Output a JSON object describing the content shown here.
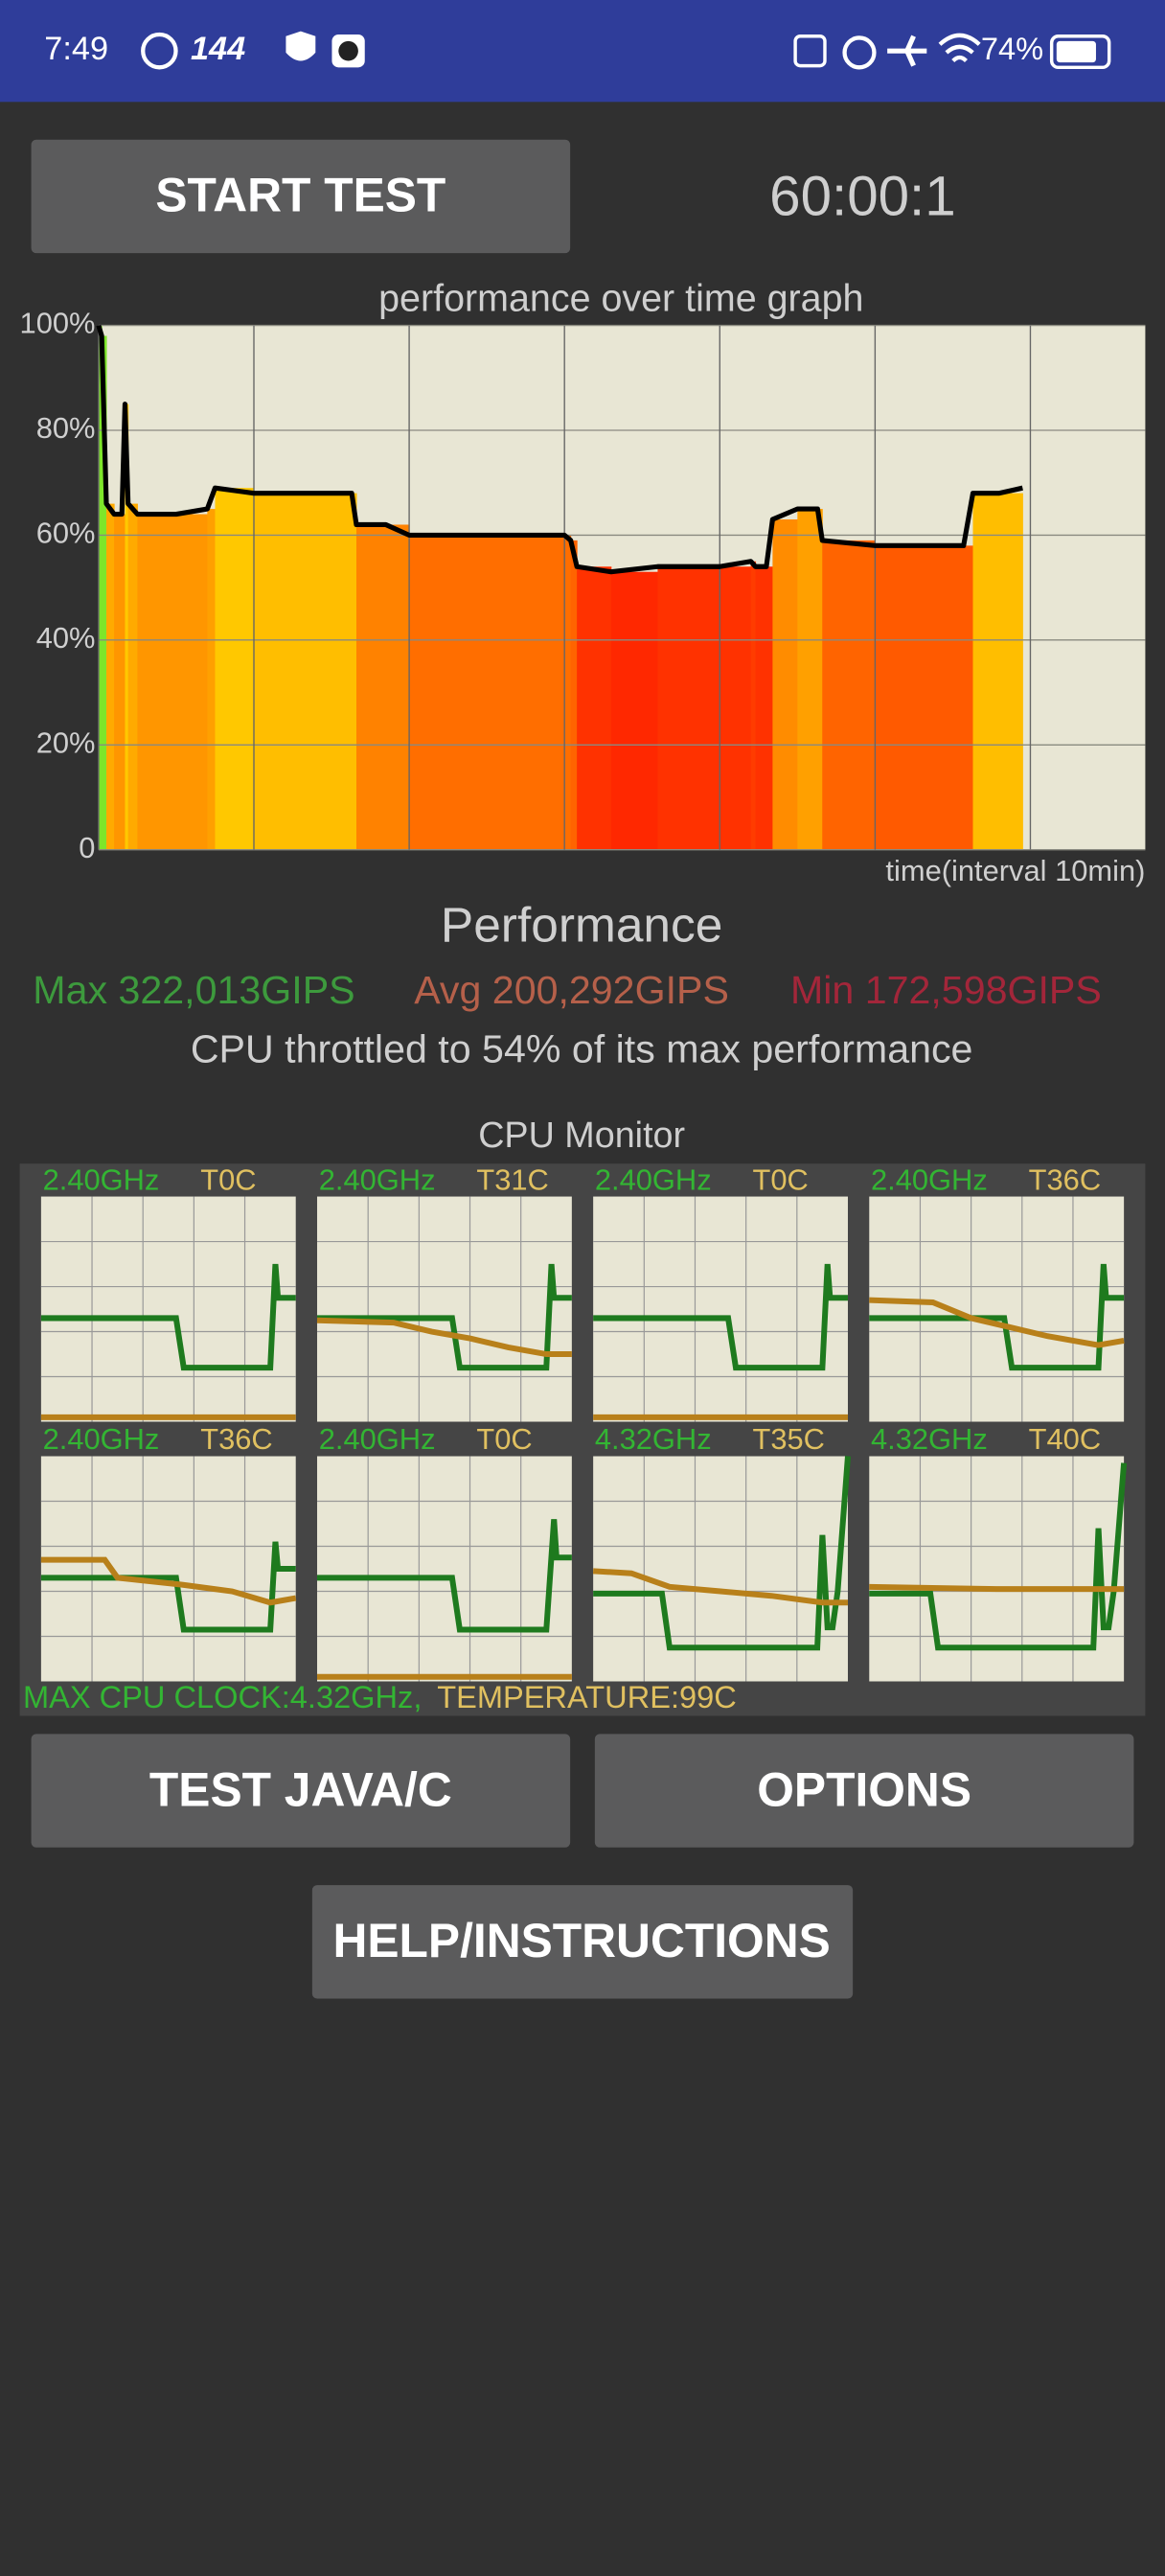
{
  "status_bar": {
    "time": "7:49",
    "refresh": "144",
    "battery": "74%"
  },
  "start_button": "START TEST",
  "timer": "60:00:1",
  "chart_data": {
    "type": "line",
    "title": "performance over time graph",
    "x_label": "time(interval 10min)",
    "xlim": [
      0,
      67.4
    ],
    "xticks": [
      0,
      10,
      20,
      30,
      40,
      50,
      60
    ],
    "ylim": [
      0,
      100
    ],
    "yticks": [
      0,
      {
        "value": 20,
        "label": "20%"
      },
      {
        "value": 40,
        "label": "40%"
      },
      {
        "value": 60,
        "label": "60%"
      },
      {
        "value": 80,
        "label": "80%"
      },
      {
        "value": 100,
        "label": "100%"
      }
    ],
    "grid": true,
    "series": [
      {
        "color": "#000000",
        "x": [
          0,
          0.2,
          0.5,
          1,
          1.5,
          1.7,
          1.9,
          2.5,
          5,
          7,
          7.5,
          10,
          14,
          16.3,
          16.6,
          18.5,
          20,
          25,
          30,
          30.4,
          30.8,
          33,
          36,
          40,
          42,
          42.3,
          43,
          43.4,
          45,
          46.3,
          46.6,
          50,
          55,
          55.7,
          56.3,
          58,
          59.5
        ],
        "values": [
          100,
          98,
          66,
          64,
          64,
          85,
          66,
          64,
          64,
          65,
          69,
          68,
          68,
          68,
          62,
          62,
          60,
          60,
          60,
          59,
          54,
          53,
          54,
          54,
          55,
          54,
          54,
          63,
          65,
          65,
          59,
          58,
          58,
          58,
          68,
          68,
          69
        ]
      }
    ]
  },
  "performance": {
    "title": "Performance",
    "max": "Max 322,013GIPS",
    "avg": "Avg 200,292GIPS",
    "min": "Min 172,598GIPS",
    "throttle": "CPU throttled to 54% of its max performance"
  },
  "cpu_monitor": {
    "title": "CPU Monitor",
    "freq_color": "#1e7a1e",
    "temp_color": "#b8801a",
    "ylim": [
      0,
      100
    ],
    "xlim": [
      0,
      100
    ],
    "cells": [
      {
        "freq_label": "2.40GHz",
        "temp_label": "T0C",
        "freq": {
          "x": [
            0,
            53,
            56,
            90,
            92,
            93,
            100
          ],
          "values": [
            46,
            46,
            24,
            24,
            70,
            55,
            55
          ]
        },
        "temp": {
          "x": [
            0,
            100
          ],
          "values": [
            2,
            2
          ]
        }
      },
      {
        "freq_label": "2.40GHz",
        "temp_label": "T31C",
        "freq": {
          "x": [
            0,
            53,
            56,
            90,
            92,
            93,
            100
          ],
          "values": [
            46,
            46,
            24,
            24,
            70,
            55,
            55
          ]
        },
        "temp": {
          "x": [
            0,
            30,
            45,
            60,
            75,
            90,
            100
          ],
          "values": [
            45,
            44,
            40,
            37,
            33,
            30,
            30
          ]
        }
      },
      {
        "freq_label": "2.40GHz",
        "temp_label": "T0C",
        "freq": {
          "x": [
            0,
            53,
            56,
            90,
            92,
            93,
            100
          ],
          "values": [
            46,
            46,
            24,
            24,
            70,
            55,
            55
          ]
        },
        "temp": {
          "x": [
            0,
            100
          ],
          "values": [
            2,
            2
          ]
        }
      },
      {
        "freq_label": "2.40GHz",
        "temp_label": "T36C",
        "freq": {
          "x": [
            0,
            53,
            56,
            90,
            92,
            93,
            100
          ],
          "values": [
            46,
            46,
            24,
            24,
            70,
            55,
            55
          ]
        },
        "temp": {
          "x": [
            0,
            25,
            40,
            55,
            70,
            90,
            100
          ],
          "values": [
            54,
            53,
            46,
            42,
            38,
            34,
            36
          ]
        }
      },
      {
        "freq_label": "2.40GHz",
        "temp_label": "T36C",
        "freq": {
          "x": [
            0,
            53,
            56,
            90,
            92,
            93,
            100
          ],
          "values": [
            46,
            46,
            23,
            23,
            62,
            50,
            50
          ]
        },
        "temp": {
          "x": [
            0,
            25,
            30,
            55,
            75,
            90,
            100
          ],
          "values": [
            54,
            54,
            46,
            43,
            40,
            35,
            37
          ]
        }
      },
      {
        "freq_label": "2.40GHz",
        "temp_label": "T0C",
        "freq": {
          "x": [
            0,
            53,
            56,
            90,
            93,
            94,
            100
          ],
          "values": [
            46,
            46,
            23,
            23,
            72,
            55,
            55
          ]
        },
        "temp": {
          "x": [
            0,
            100
          ],
          "values": [
            2,
            2
          ]
        }
      },
      {
        "freq_label": "4.32GHz",
        "temp_label": "T35C",
        "freq": {
          "x": [
            0,
            27,
            30,
            88,
            90,
            92,
            94,
            96,
            100
          ],
          "values": [
            39,
            39,
            15,
            15,
            65,
            24,
            24,
            40,
            100
          ]
        },
        "temp": {
          "x": [
            0,
            15,
            30,
            50,
            70,
            90,
            100
          ],
          "values": [
            49,
            48,
            42,
            40,
            38,
            35,
            35
          ]
        }
      },
      {
        "freq_label": "4.32GHz",
        "temp_label": "T40C",
        "freq": {
          "x": [
            0,
            24,
            27,
            88,
            90,
            92,
            94,
            96,
            100
          ],
          "values": [
            39,
            39,
            15,
            15,
            68,
            24,
            24,
            40,
            97
          ]
        },
        "temp": {
          "x": [
            0,
            50,
            100
          ],
          "values": [
            42,
            41,
            41
          ]
        }
      }
    ],
    "footer_clock": "MAX CPU CLOCK:4.32GHz,",
    "footer_temp": "TEMPERATURE:99C"
  },
  "buttons": {
    "java": "TEST JAVA/C",
    "options": "OPTIONS",
    "help": "HELP/INSTRUCTIONS"
  }
}
